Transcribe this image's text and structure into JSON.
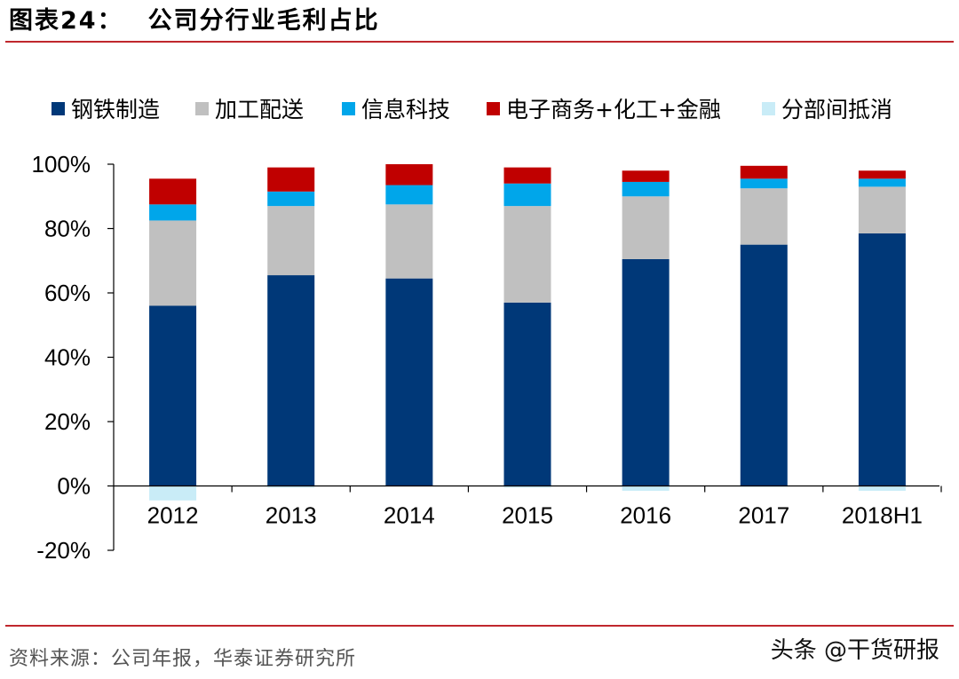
{
  "figure": {
    "label": "图表24：",
    "title": "公司分行业毛利占比"
  },
  "source": "资料来源：公司年报，华泰证券研究所",
  "watermark": "头条 @干货研报",
  "chart_data": {
    "type": "bar",
    "stacked": true,
    "categories": [
      "2012",
      "2013",
      "2014",
      "2015",
      "2016",
      "2017",
      "2018H1"
    ],
    "series": [
      {
        "name": "钢铁制造",
        "color": "#003878",
        "values": [
          56,
          65.5,
          64.5,
          57,
          70.5,
          75,
          78.5
        ]
      },
      {
        "name": "加工配送",
        "color": "#c0c0c0",
        "values": [
          26.5,
          21.5,
          23,
          30,
          19.5,
          17.5,
          14.5
        ]
      },
      {
        "name": "信息科技",
        "color": "#00a6ea",
        "values": [
          5,
          4.5,
          6,
          7,
          4.5,
          3,
          2.5
        ]
      },
      {
        "name": "电子商务+化工+金融",
        "color": "#c00000",
        "values": [
          8,
          7.5,
          6.5,
          5,
          3.5,
          4,
          2.5
        ]
      },
      {
        "name": "分部间抵消",
        "color": "#c9ecf7",
        "values": [
          -4.5,
          -0.5,
          0,
          -0.5,
          -1.5,
          -0.3,
          -1.5
        ]
      }
    ],
    "ylim": [
      -20,
      100
    ],
    "yticks": [
      -20,
      0,
      20,
      40,
      60,
      80,
      100
    ],
    "ytick_labels": [
      "-20%",
      "0%",
      "20%",
      "40%",
      "60%",
      "80%",
      "100%"
    ],
    "legend_position": "top",
    "grid": false
  }
}
